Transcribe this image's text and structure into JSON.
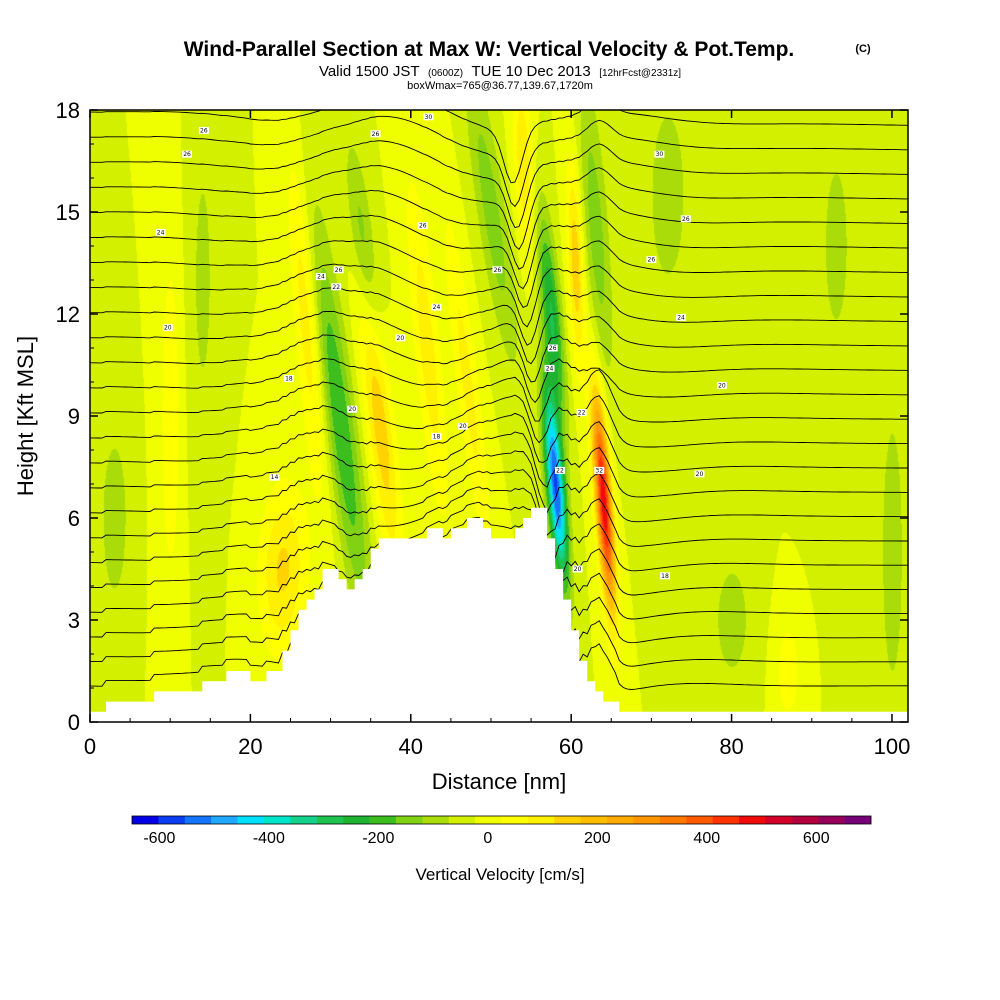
{
  "header": {
    "title": "Wind-Parallel Section at Max W: Vertical Velocity & Pot.Temp.",
    "copyright": "(C)",
    "valid_prefix": "Valid 1500 JST",
    "valid_utc": "(0600Z)",
    "valid_date": "TUE 10 Dec 2013",
    "forecast": "[12hrFcst@2331z]",
    "box_info": "boxWmax=765@36.77,139.67,1720m"
  },
  "chart_data": {
    "type": "heatmap",
    "xlabel": "Distance [nm]",
    "ylabel": "Height [Kft MSL]",
    "xlim": [
      0,
      102
    ],
    "ylim": [
      0,
      18
    ],
    "x_ticks": [
      0,
      20,
      40,
      60,
      80,
      100
    ],
    "y_ticks": [
      0,
      3,
      6,
      9,
      12,
      15,
      18
    ],
    "x_tick_labels": [
      "0",
      "20",
      "40",
      "60",
      "80",
      "100"
    ],
    "y_tick_labels": [
      "0",
      "3",
      "6",
      "9",
      "12",
      "15",
      "18"
    ],
    "colorbar": {
      "title": "Vertical Velocity [cm/s]",
      "min": -650,
      "max": 700,
      "step": 50,
      "tick_values": [
        -600,
        -400,
        -200,
        0,
        200,
        400,
        600
      ],
      "tick_labels": [
        "-600",
        "-400",
        "-200",
        "0",
        "200",
        "400",
        "600"
      ],
      "colors": [
        "#0000e8",
        "#0a3cf2",
        "#1474fa",
        "#1ea8ff",
        "#00e0ff",
        "#00e6c8",
        "#14d28c",
        "#1ec350",
        "#1eb432",
        "#3cbe1e",
        "#82d214",
        "#aadc0a",
        "#d2f000",
        "#f0ff00",
        "#ffff00",
        "#fff000",
        "#ffd200",
        "#ffbe00",
        "#ffaa00",
        "#ff9600",
        "#ff7800",
        "#ff5a00",
        "#ff3200",
        "#f00a0a",
        "#d20028",
        "#b4003c",
        "#96005a",
        "#780078"
      ]
    },
    "terrain_kft": [
      [
        0,
        0.3
      ],
      [
        2,
        0.3
      ],
      [
        2,
        0.6
      ],
      [
        8,
        0.6
      ],
      [
        8,
        0.9
      ],
      [
        14,
        0.9
      ],
      [
        14,
        1.2
      ],
      [
        17,
        1.2
      ],
      [
        17,
        1.5
      ],
      [
        20,
        1.5
      ],
      [
        20,
        1.2
      ],
      [
        22,
        1.2
      ],
      [
        22,
        1.5
      ],
      [
        24,
        1.5
      ],
      [
        24,
        2.1
      ],
      [
        25,
        2.1
      ],
      [
        25,
        2.7
      ],
      [
        26,
        2.7
      ],
      [
        26,
        3.3
      ],
      [
        27,
        3.3
      ],
      [
        27,
        3.6
      ],
      [
        28,
        3.6
      ],
      [
        28,
        3.9
      ],
      [
        29,
        3.9
      ],
      [
        29,
        4.5
      ],
      [
        31,
        4.5
      ],
      [
        31,
        4.2
      ],
      [
        32,
        4.2
      ],
      [
        32,
        3.9
      ],
      [
        33,
        3.9
      ],
      [
        33,
        4.2
      ],
      [
        34,
        4.2
      ],
      [
        34,
        4.5
      ],
      [
        35,
        4.5
      ],
      [
        35,
        5.1
      ],
      [
        36,
        5.1
      ],
      [
        36,
        5.4
      ],
      [
        42,
        5.4
      ],
      [
        42,
        5.7
      ],
      [
        44,
        5.7
      ],
      [
        44,
        5.4
      ],
      [
        45,
        5.4
      ],
      [
        45,
        5.7
      ],
      [
        47,
        5.7
      ],
      [
        47,
        6.0
      ],
      [
        49,
        6.0
      ],
      [
        49,
        5.7
      ],
      [
        50,
        5.7
      ],
      [
        50,
        5.4
      ],
      [
        53,
        5.4
      ],
      [
        53,
        5.7
      ],
      [
        54,
        5.7
      ],
      [
        54,
        6.0
      ],
      [
        55,
        6.0
      ],
      [
        55,
        6.3
      ],
      [
        57,
        6.3
      ],
      [
        57,
        5.4
      ],
      [
        58,
        5.4
      ],
      [
        58,
        4.5
      ],
      [
        59,
        4.5
      ],
      [
        59,
        3.6
      ],
      [
        60,
        3.6
      ],
      [
        60,
        2.7
      ],
      [
        61,
        2.7
      ],
      [
        61,
        1.8
      ],
      [
        62,
        1.8
      ],
      [
        62,
        1.2
      ],
      [
        63,
        1.2
      ],
      [
        63,
        0.9
      ],
      [
        64,
        0.9
      ],
      [
        64,
        0.6
      ],
      [
        66,
        0.6
      ],
      [
        66,
        0.3
      ],
      [
        102,
        0.3
      ]
    ],
    "w_features": [
      {
        "x": 24,
        "h": 4.5,
        "sx": 3,
        "sh": 2.5,
        "tilt": 0.1,
        "w": 160
      },
      {
        "x": 27,
        "h": 12,
        "sx": 1.6,
        "sh": 5,
        "tilt": -0.35,
        "w": 150
      },
      {
        "x": 31,
        "h": 9,
        "sx": 2,
        "sh": 6,
        "tilt": -0.55,
        "w": -200
      },
      {
        "x": 36,
        "h": 9,
        "sx": 1.7,
        "sh": 4.5,
        "tilt": -0.45,
        "w": 190
      },
      {
        "x": 34,
        "h": 14,
        "sx": 1.5,
        "sh": 3,
        "tilt": -0.5,
        "w": -150
      },
      {
        "x": 42,
        "h": 11,
        "sx": 1.6,
        "sh": 5,
        "tilt": -0.4,
        "w": 130
      },
      {
        "x": 47,
        "h": 10,
        "sx": 1.4,
        "sh": 5,
        "tilt": -0.5,
        "w": 120
      },
      {
        "x": 50,
        "h": 15,
        "sx": 1.8,
        "sh": 4.5,
        "tilt": -0.6,
        "w": -130
      },
      {
        "x": 54,
        "h": 16.5,
        "sx": 1.2,
        "sh": 2.5,
        "tilt": -0.2,
        "w": 150
      },
      {
        "x": 58,
        "h": 7,
        "sx": 1.1,
        "sh": 2.8,
        "tilt": -0.35,
        "w": -560
      },
      {
        "x": 57.5,
        "h": 12,
        "sx": 1.2,
        "sh": 3,
        "tilt": -0.4,
        "w": -250
      },
      {
        "x": 64,
        "h": 6.5,
        "sx": 1.0,
        "sh": 3.2,
        "tilt": -0.3,
        "w": 540
      },
      {
        "x": 60.5,
        "h": 13.5,
        "sx": 1.0,
        "sh": 3,
        "tilt": -0.15,
        "w": 190
      },
      {
        "x": 63,
        "h": 14.5,
        "sx": 1.6,
        "sh": 4.5,
        "tilt": -0.3,
        "w": -130
      },
      {
        "x": 72,
        "h": 15.5,
        "sx": 2.5,
        "sh": 3,
        "tilt": 0.0,
        "w": -90
      },
      {
        "x": 80,
        "h": 3,
        "sx": 2.5,
        "sh": 2,
        "tilt": 0.0,
        "w": -80
      },
      {
        "x": 87,
        "h": 1.5,
        "sx": 1.5,
        "sh": 1.5,
        "tilt": 0.0,
        "w": 90
      },
      {
        "x": 10,
        "h": 9,
        "sx": 1.5,
        "sh": 6,
        "tilt": 0.0,
        "w": 80
      },
      {
        "x": 14,
        "h": 13,
        "sx": 2,
        "sh": 6,
        "tilt": 0.0,
        "w": -60
      },
      {
        "x": 3,
        "h": 6,
        "sx": 2,
        "sh": 3,
        "tilt": 0.0,
        "w": -80
      },
      {
        "x": 100,
        "h": 5,
        "sx": 2,
        "sh": 6,
        "tilt": 0.0,
        "w": -70
      },
      {
        "x": 93,
        "h": 14,
        "sx": 3,
        "sh": 5,
        "tilt": 0.0,
        "w": -60
      }
    ],
    "theta_contour_labels": [
      {
        "x": 14.2,
        "h": 17.4,
        "text": "26"
      },
      {
        "x": 12.1,
        "h": 16.7,
        "text": "26"
      },
      {
        "x": 8.8,
        "h": 14.4,
        "text": "24"
      },
      {
        "x": 9.7,
        "h": 11.6,
        "text": "20"
      },
      {
        "x": 24.8,
        "h": 10.1,
        "text": "18"
      },
      {
        "x": 23.0,
        "h": 7.2,
        "text": "14"
      },
      {
        "x": 35.6,
        "h": 17.3,
        "text": "26"
      },
      {
        "x": 42.2,
        "h": 17.8,
        "text": "30"
      },
      {
        "x": 41.5,
        "h": 14.6,
        "text": "26"
      },
      {
        "x": 30.7,
        "h": 12.8,
        "text": "22"
      },
      {
        "x": 28.8,
        "h": 13.1,
        "text": "24"
      },
      {
        "x": 31.0,
        "h": 13.3,
        "text": "26"
      },
      {
        "x": 38.7,
        "h": 11.3,
        "text": "20"
      },
      {
        "x": 32.7,
        "h": 9.2,
        "text": "20"
      },
      {
        "x": 43.2,
        "h": 12.2,
        "text": "24"
      },
      {
        "x": 46.5,
        "h": 8.7,
        "text": "20"
      },
      {
        "x": 43.2,
        "h": 8.4,
        "text": "18"
      },
      {
        "x": 50.8,
        "h": 13.3,
        "text": "26"
      },
      {
        "x": 57.7,
        "h": 11.0,
        "text": "26"
      },
      {
        "x": 57.3,
        "h": 10.4,
        "text": "24"
      },
      {
        "x": 61.3,
        "h": 9.1,
        "text": "22"
      },
      {
        "x": 58.6,
        "h": 7.4,
        "text": "22"
      },
      {
        "x": 63.5,
        "h": 7.4,
        "text": "32"
      },
      {
        "x": 60.8,
        "h": 4.5,
        "text": "20"
      },
      {
        "x": 71.0,
        "h": 16.7,
        "text": "30"
      },
      {
        "x": 74.3,
        "h": 14.8,
        "text": "26"
      },
      {
        "x": 70.0,
        "h": 13.6,
        "text": "26"
      },
      {
        "x": 73.7,
        "h": 11.9,
        "text": "24"
      },
      {
        "x": 78.8,
        "h": 9.9,
        "text": "20"
      },
      {
        "x": 76.0,
        "h": 7.3,
        "text": "20"
      },
      {
        "x": 71.7,
        "h": 4.3,
        "text": "18"
      }
    ]
  }
}
